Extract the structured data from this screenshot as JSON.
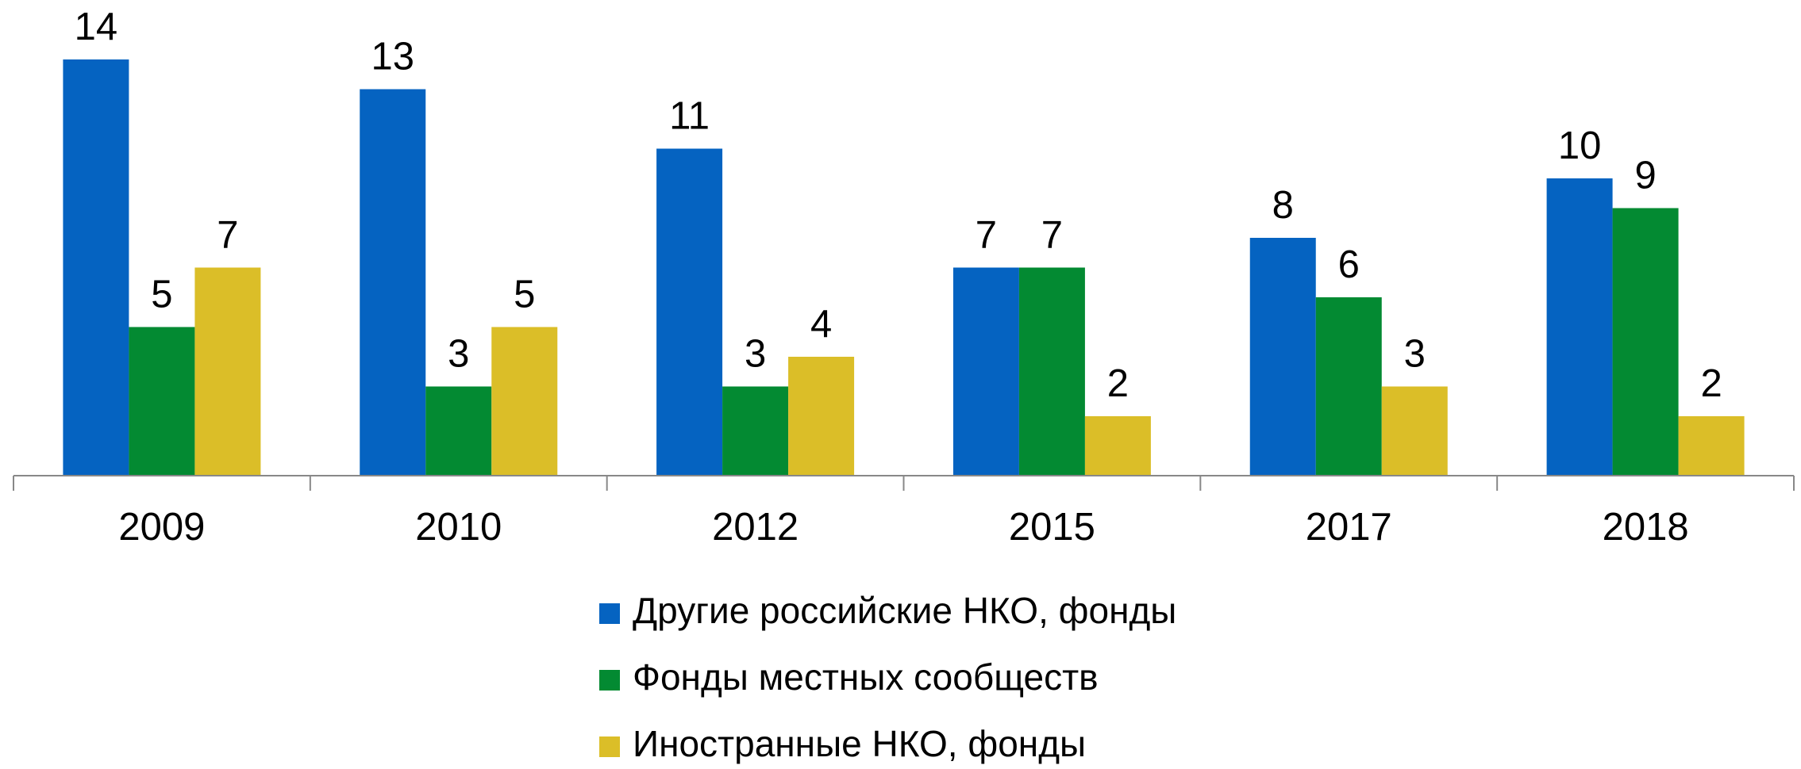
{
  "chart_data": {
    "type": "bar",
    "categories": [
      "2009",
      "2010",
      "2012",
      "2015",
      "2017",
      "2018"
    ],
    "series": [
      {
        "name": "Другие российские НКО, фонды",
        "color": "#0563c1",
        "values": [
          14,
          13,
          11,
          7,
          8,
          10
        ]
      },
      {
        "name": "Фонды местных сообществ",
        "color": "#038a32",
        "values": [
          5,
          3,
          3,
          7,
          6,
          9
        ]
      },
      {
        "name": "Иностранные НКО, фонды",
        "color": "#dbbe28",
        "values": [
          7,
          5,
          4,
          2,
          3,
          2
        ]
      }
    ],
    "ylim": [
      0,
      16
    ],
    "legend": "bottom"
  }
}
